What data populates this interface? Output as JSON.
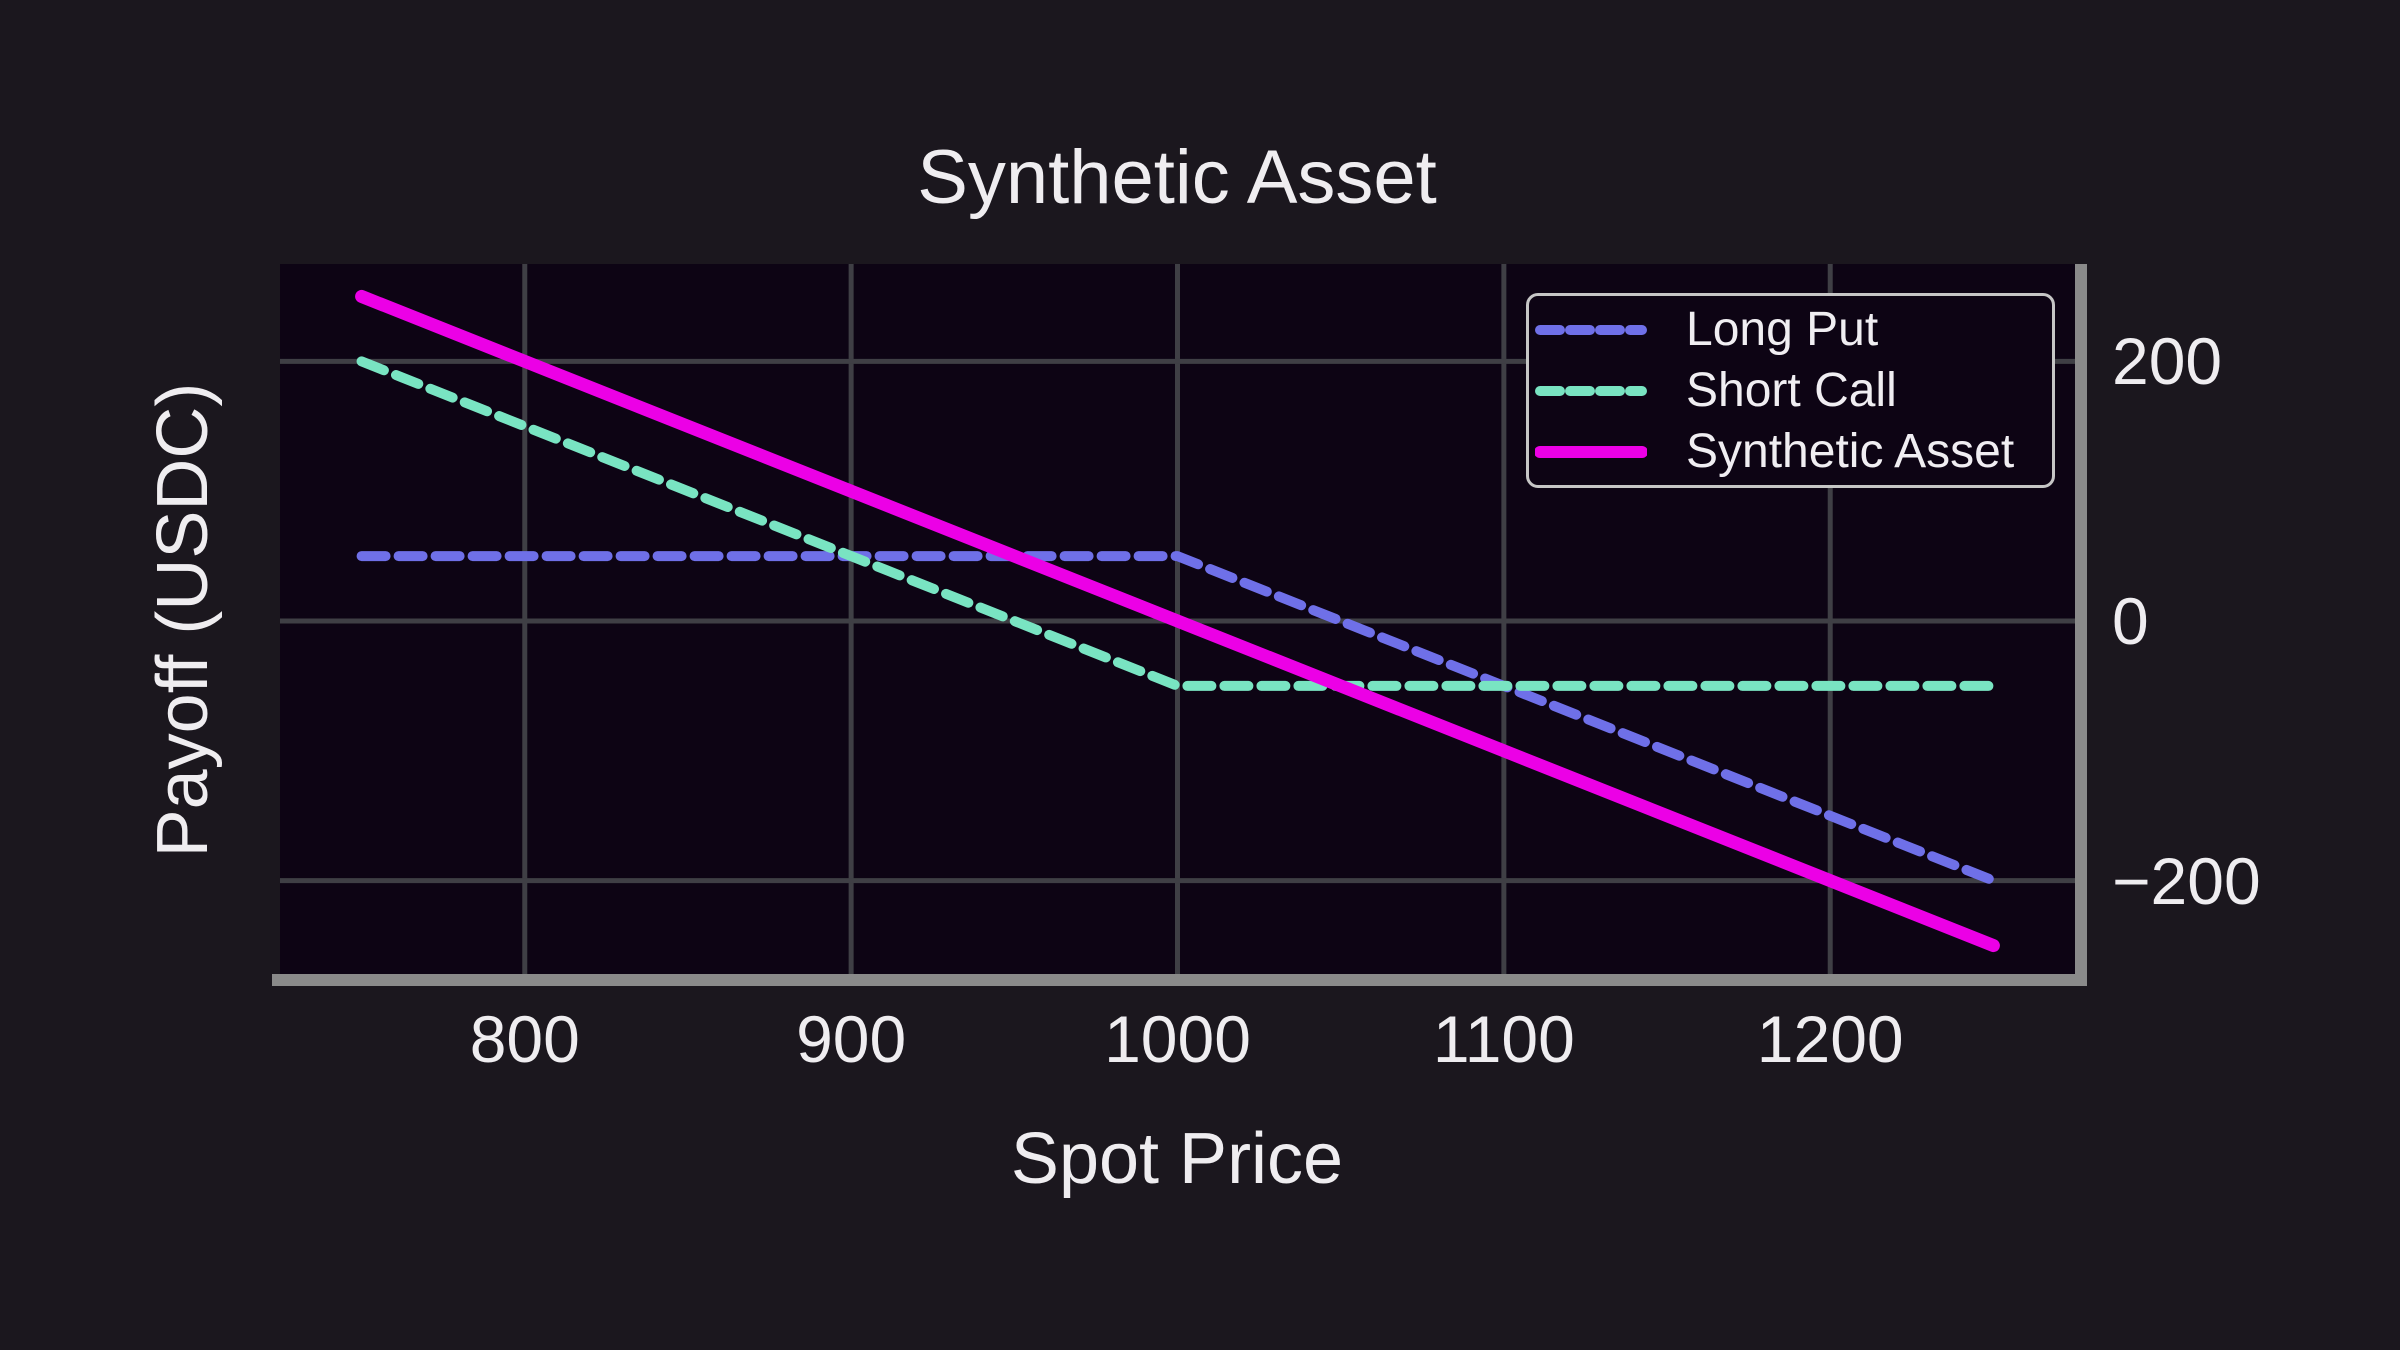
{
  "chart_data": {
    "type": "line",
    "title": "Synthetic Asset",
    "xlabel": "Spot Price",
    "ylabel": "Payoff (USDC)",
    "xlim": [
      725,
      1275
    ],
    "ylim": [
      -275,
      275
    ],
    "grid": true,
    "x_ticks": [
      {
        "value": 800,
        "label": "800"
      },
      {
        "value": 900,
        "label": "900"
      },
      {
        "value": 1000,
        "label": "1000"
      },
      {
        "value": 1100,
        "label": "1100"
      },
      {
        "value": 1200,
        "label": "1200"
      }
    ],
    "y_ticks": [
      {
        "value": 200,
        "label": "200"
      },
      {
        "value": 0,
        "label": "0"
      },
      {
        "value": -200,
        "label": "−200"
      }
    ],
    "y_tick_side": "right",
    "legend_position": "top-right",
    "series": [
      {
        "name": "Long Put",
        "color": "#6f70e8",
        "style": "dashed",
        "points": [
          [
            750,
            50
          ],
          [
            1000,
            50
          ],
          [
            1250,
            -200
          ]
        ]
      },
      {
        "name": "Short Call",
        "color": "#79e4c2",
        "style": "dashed",
        "points": [
          [
            750,
            200
          ],
          [
            1000,
            -50
          ],
          [
            1250,
            -50
          ]
        ]
      },
      {
        "name": "Synthetic Asset",
        "color": "#ec00e6",
        "style": "solid",
        "points": [
          [
            750,
            250
          ],
          [
            1250,
            -250
          ]
        ]
      }
    ]
  },
  "colors": {
    "figure_background": "#1b171e",
    "plot_background": "#0d0414",
    "grid": "#3f3f45",
    "spine": "#8a8a8a",
    "text": "#efedf0",
    "legend_border": "#c6c6c6"
  }
}
